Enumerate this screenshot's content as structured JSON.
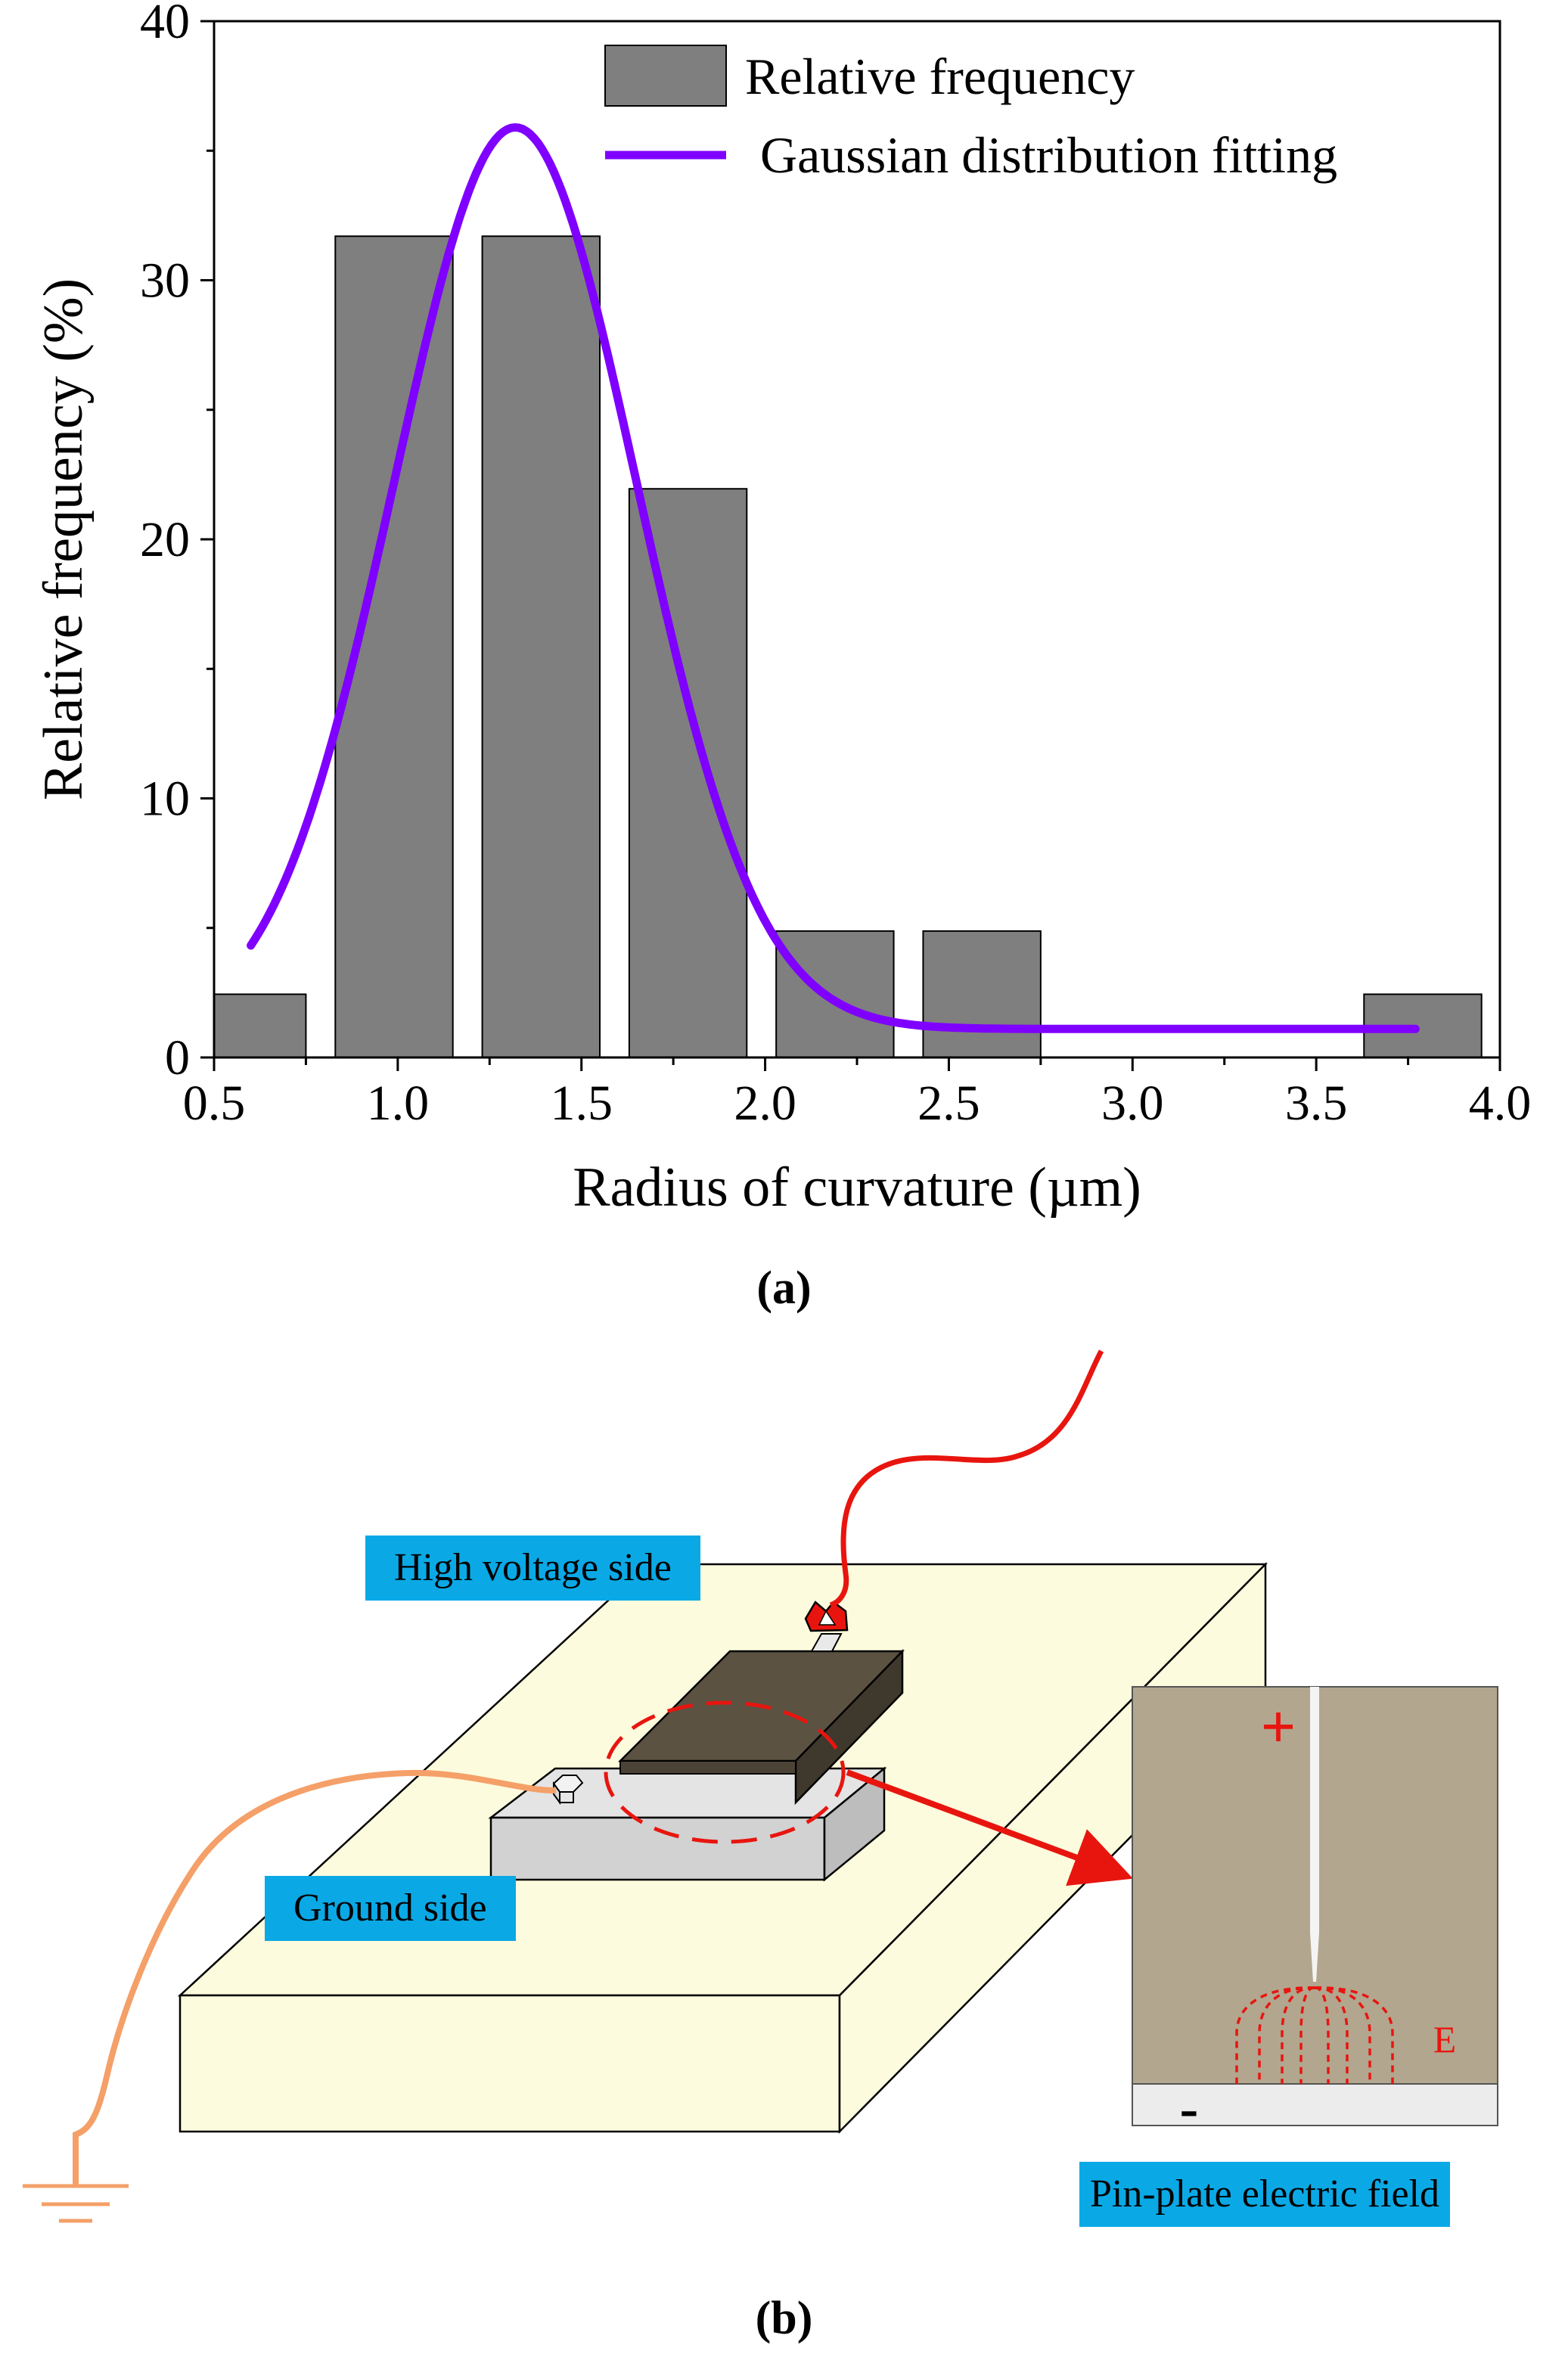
{
  "chart_data": {
    "type": "bar",
    "xlabel": "Radius of curvature (µm)",
    "ylabel": "Relative frequency (%)",
    "xlim": [
      0.5,
      4.0
    ],
    "ylim": [
      0,
      40
    ],
    "x_ticks": [
      "0.5",
      "1.0",
      "1.5",
      "2.0",
      "2.5",
      "3.0",
      "3.5",
      "4.0"
    ],
    "y_ticks": [
      "0",
      "10",
      "20",
      "30",
      "40"
    ],
    "grid": false,
    "legend_position": "top-right",
    "bar_color": "#7f7f7f",
    "line_color": "#7f00ff",
    "bars": [
      {
        "x0": 0.5,
        "x1": 0.75,
        "value": 2.44
      },
      {
        "x0": 0.83,
        "x1": 1.15,
        "value": 31.7
      },
      {
        "x0": 1.23,
        "x1": 1.55,
        "value": 31.7
      },
      {
        "x0": 1.63,
        "x1": 1.95,
        "value": 21.95
      },
      {
        "x0": 2.03,
        "x1": 2.35,
        "value": 4.88
      },
      {
        "x0": 2.43,
        "x1": 2.75,
        "value": 4.88
      },
      {
        "x0": 3.63,
        "x1": 3.95,
        "value": 2.44
      }
    ],
    "series": [
      {
        "name": "Relative frequency",
        "kind": "bar"
      },
      {
        "name": "Gaussian distribution fitting",
        "kind": "line",
        "model": "gaussian",
        "y0": 1.1,
        "amplitude": 34.8,
        "center": 1.32,
        "sigma": 0.33,
        "x_range": [
          0.6,
          3.77
        ]
      }
    ]
  },
  "caption_a": "(a)",
  "caption_b": "(b)",
  "diagram": {
    "high_voltage_label": "High voltage side",
    "ground_label": "Ground side",
    "field_label": "Pin-plate electric field",
    "plus_sign": "+",
    "minus_sign": "-",
    "field_symbol": "E",
    "wire_hv_color": "#e8150f",
    "wire_ground_color": "#f4a068",
    "label_bg_color": "#0aa9e6",
    "base_color": "#fdfbdd",
    "inset_bg_color": "#b2a68e"
  }
}
